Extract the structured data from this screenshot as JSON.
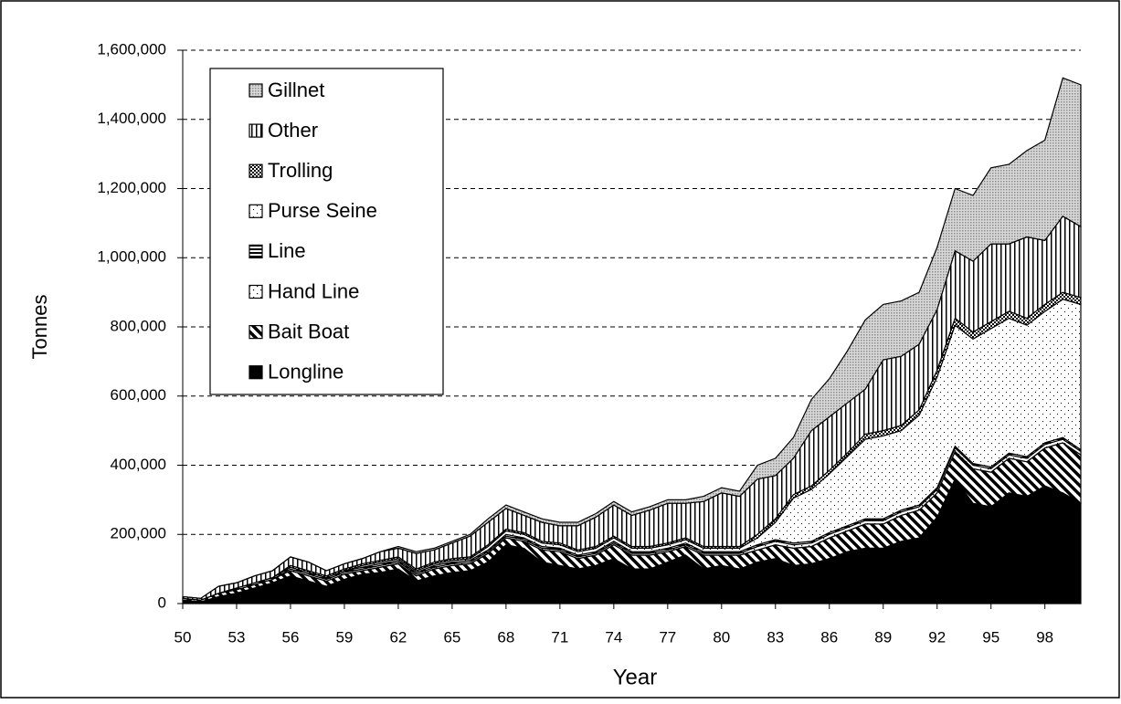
{
  "chart_data": {
    "type": "stacked-area",
    "y_label": "Tonnes",
    "x_label": "Year",
    "categories": [
      "50",
      null,
      null,
      "53",
      null,
      null,
      "56",
      null,
      null,
      "59",
      null,
      null,
      "62",
      null,
      null,
      "65",
      null,
      null,
      "68",
      null,
      null,
      "71",
      null,
      null,
      "74",
      null,
      null,
      "77",
      null,
      null,
      "80",
      null,
      null,
      "83",
      null,
      null,
      "86",
      null,
      null,
      "89",
      null,
      null,
      "92",
      null,
      null,
      "95",
      null,
      null,
      "98",
      null,
      null
    ],
    "ylim": [
      0,
      1600000
    ],
    "yticks": [
      0,
      {
        "value": 200000,
        "label": "200,000"
      },
      {
        "value": 400000,
        "label": "400,000"
      },
      {
        "value": 600000,
        "label": "600,000"
      },
      {
        "value": 800000,
        "label": "800,000"
      },
      {
        "value": 1000000,
        "label": "1,000,000"
      },
      {
        "value": 1200000,
        "label": "1,200,000"
      },
      {
        "value": 1400000,
        "label": "1,400,000"
      },
      {
        "value": 1600000,
        "label": "1,600,000"
      }
    ],
    "grid": true,
    "legend": "upper left",
    "series": [
      {
        "name": "Longline",
        "color": "#000000",
        "values": [
          10000,
          5000,
          20000,
          30000,
          45000,
          60000,
          80000,
          65000,
          50000,
          70000,
          85000,
          90000,
          100000,
          65000,
          80000,
          90000,
          95000,
          120000,
          170000,
          160000,
          120000,
          110000,
          100000,
          110000,
          130000,
          100000,
          100000,
          120000,
          140000,
          100000,
          110000,
          100000,
          120000,
          130000,
          110000,
          115000,
          130000,
          150000,
          160000,
          160000,
          180000,
          190000,
          250000,
          360000,
          290000,
          280000,
          320000,
          310000,
          340000,
          320000,
          290000
        ]
      },
      {
        "name": "Bait Boat",
        "color": "#000000",
        "values": [
          5000,
          5000,
          10000,
          10000,
          10000,
          10000,
          15000,
          15000,
          15000,
          15000,
          10000,
          15000,
          15000,
          15000,
          20000,
          20000,
          20000,
          25000,
          20000,
          20000,
          35000,
          40000,
          30000,
          30000,
          40000,
          40000,
          40000,
          30000,
          25000,
          40000,
          30000,
          40000,
          35000,
          40000,
          50000,
          50000,
          60000,
          60000,
          70000,
          70000,
          75000,
          80000,
          70000,
          80000,
          100000,
          100000,
          100000,
          100000,
          110000,
          145000,
          140000
        ]
      },
      {
        "name": "Hand Line",
        "color": "#000000",
        "values": [
          0,
          0,
          0,
          0,
          0,
          0,
          5000,
          5000,
          5000,
          5000,
          5000,
          5000,
          5000,
          5000,
          5000,
          5000,
          5000,
          5000,
          5000,
          5000,
          5000,
          5000,
          5000,
          5000,
          5000,
          5000,
          5000,
          5000,
          5000,
          5000,
          5000,
          5000,
          10000,
          10000,
          10000,
          10000,
          10000,
          10000,
          10000,
          10000,
          10000,
          10000,
          10000,
          10000,
          10000,
          10000,
          10000,
          10000,
          10000,
          10000,
          10000
        ]
      },
      {
        "name": "Line",
        "color": "#000000",
        "values": [
          0,
          0,
          0,
          5000,
          5000,
          5000,
          5000,
          5000,
          5000,
          5000,
          5000,
          5000,
          5000,
          5000,
          5000,
          5000,
          5000,
          5000,
          5000,
          5000,
          5000,
          5000,
          5000,
          5000,
          5000,
          5000,
          5000,
          5000,
          5000,
          5000,
          5000,
          5000,
          5000,
          5000,
          5000,
          5000,
          5000,
          5000,
          5000,
          5000,
          5000,
          5000,
          5000,
          5000,
          5000,
          5000,
          5000,
          5000,
          5000,
          5000,
          5000
        ]
      },
      {
        "name": "Purse Seine",
        "color": "#000000",
        "values": [
          0,
          0,
          0,
          0,
          0,
          0,
          0,
          0,
          0,
          0,
          5000,
          5000,
          5000,
          5000,
          5000,
          5000,
          5000,
          10000,
          10000,
          10000,
          10000,
          10000,
          10000,
          10000,
          10000,
          10000,
          10000,
          10000,
          10000,
          10000,
          10000,
          10000,
          20000,
          50000,
          130000,
          150000,
          170000,
          200000,
          230000,
          240000,
          230000,
          260000,
          320000,
          350000,
          360000,
          400000,
          390000,
          380000,
          380000,
          400000,
          420000
        ]
      },
      {
        "name": "Trolling",
        "color": "#000000",
        "values": [
          0,
          0,
          0,
          0,
          0,
          0,
          5000,
          5000,
          5000,
          5000,
          5000,
          5000,
          5000,
          5000,
          5000,
          5000,
          5000,
          5000,
          5000,
          5000,
          5000,
          5000,
          5000,
          5000,
          5000,
          5000,
          5000,
          5000,
          5000,
          5000,
          5000,
          5000,
          10000,
          10000,
          10000,
          10000,
          10000,
          10000,
          15000,
          15000,
          15000,
          15000,
          20000,
          20000,
          20000,
          20000,
          20000,
          20000,
          20000,
          20000,
          20000
        ]
      },
      {
        "name": "Other",
        "color": "#000000",
        "values": [
          5000,
          5000,
          20000,
          15000,
          20000,
          20000,
          25000,
          25000,
          15000,
          15000,
          15000,
          25000,
          25000,
          45000,
          35000,
          45000,
          60000,
          65000,
          60000,
          50000,
          55000,
          50000,
          70000,
          85000,
          90000,
          90000,
          105000,
          115000,
          100000,
          130000,
          155000,
          145000,
          160000,
          125000,
          105000,
          160000,
          155000,
          145000,
          130000,
          205000,
          200000,
          190000,
          175000,
          195000,
          205000,
          225000,
          195000,
          235000,
          185000,
          220000,
          205000
        ]
      },
      {
        "name": "Gillnet",
        "color": "#8c8c8c",
        "values": [
          0,
          0,
          0,
          0,
          0,
          0,
          0,
          0,
          0,
          0,
          0,
          0,
          5000,
          5000,
          5000,
          5000,
          5000,
          10000,
          10000,
          10000,
          10000,
          10000,
          10000,
          10000,
          10000,
          10000,
          10000,
          10000,
          10000,
          15000,
          15000,
          15000,
          40000,
          50000,
          60000,
          90000,
          110000,
          150000,
          200000,
          160000,
          160000,
          150000,
          180000,
          180000,
          190000,
          220000,
          230000,
          250000,
          290000,
          400000,
          410000
        ]
      }
    ]
  }
}
